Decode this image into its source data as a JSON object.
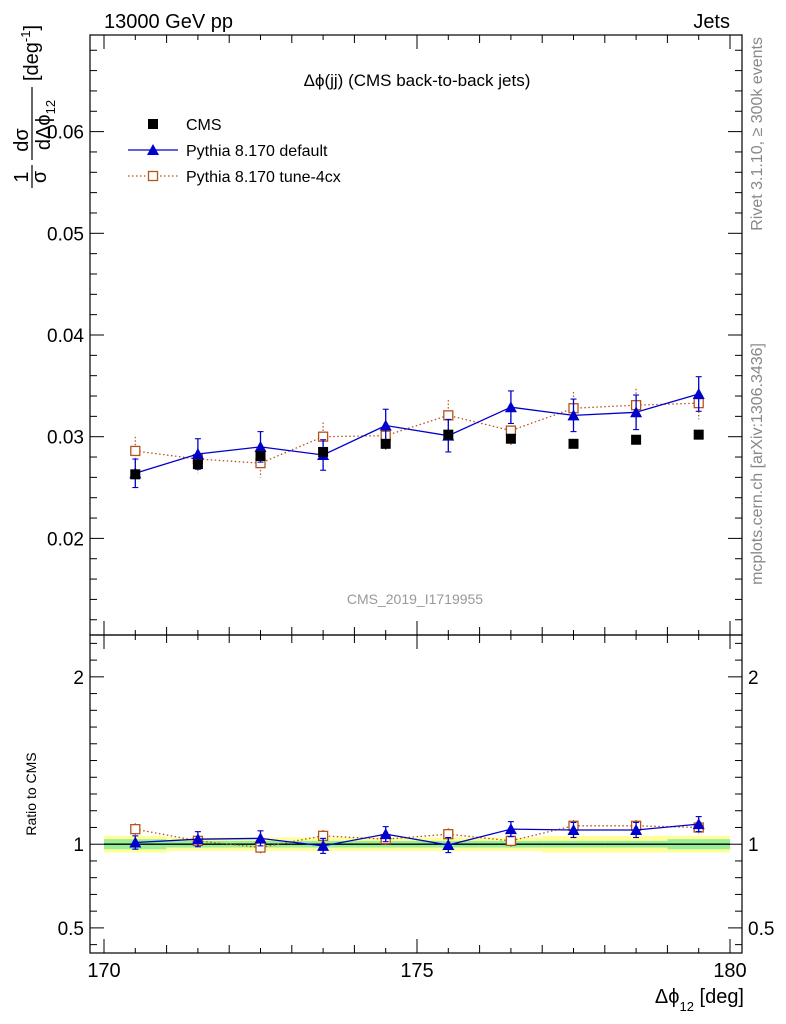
{
  "header": {
    "left": "13000 GeV pp",
    "right": "Jets"
  },
  "side_text": {
    "top": "Rivet 3.1.10, ≥ 300k events",
    "bottom": "mcplots.cern.ch [arXiv:1306.3436]"
  },
  "colors": {
    "cms": "#000000",
    "pythia_default": "#0000cc",
    "pythia_tune": "#b5531d",
    "band_inner": "#99ee99",
    "band_outer": "#ffff99",
    "watermark": "#999999"
  },
  "chart_data": [
    {
      "type": "line",
      "title": "Δϕ(jj) (CMS back-to-back jets)",
      "ylabel": "1/σ dσ/dΔϕ_12 [deg^-1]",
      "watermark": "CMS_2019_I1719955",
      "xlim": [
        170,
        180
      ],
      "ylim": [
        0.0105,
        0.0695
      ],
      "yticks": [
        0.02,
        0.03,
        0.04,
        0.05,
        0.06
      ],
      "ytick_labels": [
        "0.02",
        "0.03",
        "0.04",
        "0.05",
        "0.06"
      ],
      "legend": "top-left",
      "series": [
        {
          "name": "CMS",
          "marker": "filled-square",
          "x": [
            170.5,
            171.5,
            172.5,
            173.5,
            174.5,
            175.5,
            176.5,
            177.5,
            178.5,
            179.5
          ],
          "y": [
            0.0263,
            0.0273,
            0.0281,
            0.0285,
            0.0293,
            0.0302,
            0.0298,
            0.0293,
            0.0297,
            0.0302
          ]
        },
        {
          "name": "Pythia 8.170 default",
          "marker": "filled-triangle",
          "x": [
            170.5,
            171.5,
            172.5,
            173.5,
            174.5,
            175.5,
            176.5,
            177.5,
            178.5,
            179.5
          ],
          "y": [
            0.0264,
            0.0283,
            0.029,
            0.0282,
            0.0311,
            0.0301,
            0.0329,
            0.0321,
            0.0324,
            0.0342
          ],
          "yerr": [
            0.0014,
            0.0015,
            0.0015,
            0.0015,
            0.0016,
            0.0016,
            0.0016,
            0.0016,
            0.0017,
            0.0017
          ]
        },
        {
          "name": "Pythia 8.170 tune-4cx",
          "marker": "open-square",
          "x": [
            170.5,
            171.5,
            172.5,
            173.5,
            174.5,
            175.5,
            176.5,
            177.5,
            178.5,
            179.5
          ],
          "y": [
            0.0286,
            0.0278,
            0.0274,
            0.03,
            0.0301,
            0.0321,
            0.0306,
            0.0328,
            0.0331,
            0.0333
          ],
          "yerr": [
            0.0014,
            0.0014,
            0.0014,
            0.0014,
            0.0015,
            0.0015,
            0.0015,
            0.0016,
            0.0016,
            0.0016
          ]
        }
      ]
    },
    {
      "type": "line",
      "ylabel": "Ratio to CMS",
      "xlabel": "Δϕ_12 [deg]",
      "xlim": [
        170,
        180
      ],
      "ylim": [
        0.35,
        2.25
      ],
      "xticks": [
        170,
        175,
        180
      ],
      "xtick_labels": [
        "170",
        "175",
        "180"
      ],
      "yticks": [
        0.5,
        1,
        2
      ],
      "ytick_labels": [
        "0.5",
        "1",
        "2"
      ],
      "band_inner_halfwidth": [
        0.03,
        0.02,
        0.02,
        0.02,
        0.02,
        0.02,
        0.02,
        0.02,
        0.02,
        0.03
      ],
      "band_outer_halfwidth": [
        0.05,
        0.04,
        0.04,
        0.04,
        0.04,
        0.04,
        0.04,
        0.05,
        0.05,
        0.05
      ],
      "series": [
        {
          "name": "Pythia 8.170 default",
          "x": [
            170.5,
            171.5,
            172.5,
            173.5,
            174.5,
            175.5,
            176.5,
            177.5,
            178.5,
            179.5
          ],
          "y": [
            1.01,
            1.03,
            1.035,
            0.99,
            1.06,
            0.995,
            1.09,
            1.085,
            1.085,
            1.12
          ],
          "yerr": [
            0.04,
            0.045,
            0.045,
            0.045,
            0.045,
            0.045,
            0.045,
            0.045,
            0.045,
            0.045
          ]
        },
        {
          "name": "Pythia 8.170 tune-4cx",
          "x": [
            170.5,
            171.5,
            172.5,
            173.5,
            174.5,
            175.5,
            176.5,
            177.5,
            178.5,
            179.5
          ],
          "y": [
            1.09,
            1.02,
            0.98,
            1.05,
            1.03,
            1.06,
            1.02,
            1.11,
            1.11,
            1.1
          ],
          "yerr": [
            0.035,
            0.035,
            0.035,
            0.035,
            0.035,
            0.035,
            0.035,
            0.035,
            0.035,
            0.035
          ]
        }
      ]
    }
  ]
}
